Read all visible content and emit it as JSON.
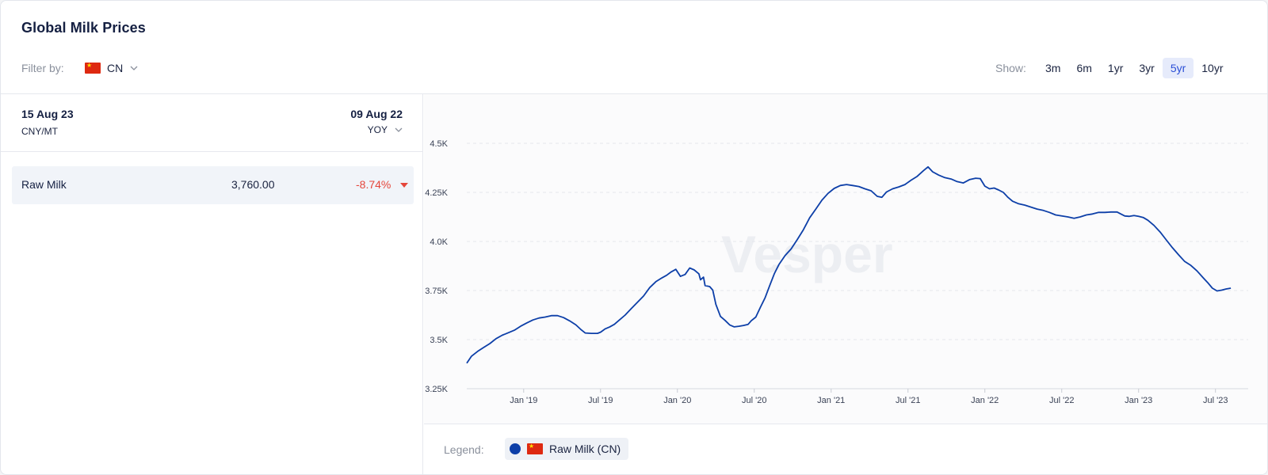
{
  "header": {
    "title": "Global Milk Prices"
  },
  "filter": {
    "label": "Filter by:",
    "country_code": "CN"
  },
  "range_selector": {
    "label": "Show:",
    "options": [
      "3m",
      "6m",
      "1yr",
      "3yr",
      "5yr",
      "10yr"
    ],
    "selected": "5yr"
  },
  "summary": {
    "start_date": "15 Aug 23",
    "unit": "CNY/MT",
    "end_date": "09 Aug 22",
    "comparison": "YOY"
  },
  "rows": [
    {
      "name": "Raw Milk",
      "price": "3,760.00",
      "change": "-8.74%",
      "direction": "down"
    }
  ],
  "legend": {
    "label": "Legend:",
    "entries": [
      {
        "name": "Raw Milk (CN)",
        "color": "#0d3fa8"
      }
    ]
  },
  "watermark": "Vesper",
  "colors": {
    "line": "#0d3fa8",
    "accent": "#2b4fd6",
    "negative": "#e5463b"
  },
  "chart_data": {
    "type": "line",
    "ylim": [
      3250,
      4500
    ],
    "yticks": [
      3250,
      3500,
      3750,
      4000,
      4250,
      4500
    ],
    "ytick_labels": [
      "3.25K",
      "3.5K",
      "3.75K",
      "4.0K",
      "4.25K",
      "4.5K"
    ],
    "xlim": [
      2018.63,
      2023.62
    ],
    "xticks": [
      {
        "label": "Jan '19",
        "x": 2019.0
      },
      {
        "label": "Jul '19",
        "x": 2019.5
      },
      {
        "label": "Jan '20",
        "x": 2020.0
      },
      {
        "label": "Jul '20",
        "x": 2020.5
      },
      {
        "label": "Jan '21",
        "x": 2021.0
      },
      {
        "label": "Jul '21",
        "x": 2021.5
      },
      {
        "label": "Jan '22",
        "x": 2022.0
      },
      {
        "label": "Jul '22",
        "x": 2022.5
      },
      {
        "label": "Jan '23",
        "x": 2023.0
      },
      {
        "label": "Jul '23",
        "x": 2023.5
      }
    ],
    "grid": true,
    "series": [
      {
        "name": "Raw Milk (CN)",
        "color": "#0d3fa8",
        "points": [
          [
            2018.63,
            3380
          ],
          [
            2018.66,
            3415
          ],
          [
            2018.7,
            3440
          ],
          [
            2018.74,
            3460
          ],
          [
            2018.78,
            3480
          ],
          [
            2018.82,
            3505
          ],
          [
            2018.86,
            3522
          ],
          [
            2018.9,
            3535
          ],
          [
            2018.94,
            3548
          ],
          [
            2018.98,
            3568
          ],
          [
            2019.02,
            3585
          ],
          [
            2019.06,
            3600
          ],
          [
            2019.1,
            3610
          ],
          [
            2019.14,
            3615
          ],
          [
            2019.18,
            3622
          ],
          [
            2019.22,
            3622
          ],
          [
            2019.26,
            3612
          ],
          [
            2019.3,
            3595
          ],
          [
            2019.34,
            3575
          ],
          [
            2019.37,
            3553
          ],
          [
            2019.4,
            3534
          ],
          [
            2019.44,
            3532
          ],
          [
            2019.48,
            3532
          ],
          [
            2019.5,
            3538
          ],
          [
            2019.53,
            3555
          ],
          [
            2019.56,
            3565
          ],
          [
            2019.59,
            3578
          ],
          [
            2019.62,
            3598
          ],
          [
            2019.66,
            3625
          ],
          [
            2019.7,
            3658
          ],
          [
            2019.74,
            3690
          ],
          [
            2019.78,
            3722
          ],
          [
            2019.82,
            3765
          ],
          [
            2019.86,
            3795
          ],
          [
            2019.9,
            3815
          ],
          [
            2019.93,
            3828
          ],
          [
            2019.96,
            3845
          ],
          [
            2019.99,
            3858
          ],
          [
            2020.02,
            3822
          ],
          [
            2020.05,
            3832
          ],
          [
            2020.08,
            3865
          ],
          [
            2020.11,
            3855
          ],
          [
            2020.14,
            3835
          ],
          [
            2020.15,
            3805
          ],
          [
            2020.17,
            3818
          ],
          [
            2020.18,
            3775
          ],
          [
            2020.21,
            3770
          ],
          [
            2020.23,
            3752
          ],
          [
            2020.25,
            3680
          ],
          [
            2020.28,
            3618
          ],
          [
            2020.31,
            3598
          ],
          [
            2020.34,
            3575
          ],
          [
            2020.37,
            3565
          ],
          [
            2020.4,
            3568
          ],
          [
            2020.43,
            3572
          ],
          [
            2020.46,
            3578
          ],
          [
            2020.48,
            3596
          ],
          [
            2020.51,
            3615
          ],
          [
            2020.54,
            3665
          ],
          [
            2020.57,
            3712
          ],
          [
            2020.6,
            3775
          ],
          [
            2020.63,
            3835
          ],
          [
            2020.66,
            3882
          ],
          [
            2020.7,
            3928
          ],
          [
            2020.74,
            3962
          ],
          [
            2020.78,
            4010
          ],
          [
            2020.82,
            4060
          ],
          [
            2020.86,
            4120
          ],
          [
            2020.9,
            4165
          ],
          [
            2020.94,
            4210
          ],
          [
            2020.98,
            4245
          ],
          [
            2021.02,
            4270
          ],
          [
            2021.06,
            4285
          ],
          [
            2021.1,
            4290
          ],
          [
            2021.14,
            4285
          ],
          [
            2021.18,
            4280
          ],
          [
            2021.22,
            4268
          ],
          [
            2021.26,
            4258
          ],
          [
            2021.3,
            4230
          ],
          [
            2021.33,
            4225
          ],
          [
            2021.36,
            4252
          ],
          [
            2021.4,
            4268
          ],
          [
            2021.44,
            4278
          ],
          [
            2021.48,
            4290
          ],
          [
            2021.52,
            4312
          ],
          [
            2021.56,
            4332
          ],
          [
            2021.6,
            4360
          ],
          [
            2021.63,
            4380
          ],
          [
            2021.66,
            4355
          ],
          [
            2021.7,
            4338
          ],
          [
            2021.74,
            4325
          ],
          [
            2021.78,
            4318
          ],
          [
            2021.82,
            4305
          ],
          [
            2021.86,
            4298
          ],
          [
            2021.9,
            4315
          ],
          [
            2021.94,
            4322
          ],
          [
            2021.97,
            4320
          ],
          [
            2022.0,
            4282
          ],
          [
            2022.03,
            4268
          ],
          [
            2022.06,
            4272
          ],
          [
            2022.09,
            4262
          ],
          [
            2022.12,
            4250
          ],
          [
            2022.15,
            4225
          ],
          [
            2022.18,
            4205
          ],
          [
            2022.22,
            4192
          ],
          [
            2022.26,
            4185
          ],
          [
            2022.3,
            4175
          ],
          [
            2022.34,
            4165
          ],
          [
            2022.38,
            4158
          ],
          [
            2022.42,
            4148
          ],
          [
            2022.46,
            4135
          ],
          [
            2022.5,
            4130
          ],
          [
            2022.54,
            4125
          ],
          [
            2022.58,
            4118
          ],
          [
            2022.62,
            4125
          ],
          [
            2022.66,
            4135
          ],
          [
            2022.7,
            4140
          ],
          [
            2022.74,
            4148
          ],
          [
            2022.78,
            4148
          ],
          [
            2022.82,
            4150
          ],
          [
            2022.86,
            4150
          ],
          [
            2022.88,
            4142
          ],
          [
            2022.91,
            4130
          ],
          [
            2022.94,
            4128
          ],
          [
            2022.97,
            4132
          ],
          [
            2023.0,
            4128
          ],
          [
            2023.03,
            4122
          ],
          [
            2023.06,
            4108
          ],
          [
            2023.1,
            4082
          ],
          [
            2023.14,
            4048
          ],
          [
            2023.18,
            4008
          ],
          [
            2023.22,
            3968
          ],
          [
            2023.26,
            3932
          ],
          [
            2023.3,
            3898
          ],
          [
            2023.34,
            3878
          ],
          [
            2023.38,
            3850
          ],
          [
            2023.42,
            3815
          ],
          [
            2023.45,
            3790
          ],
          [
            2023.48,
            3762
          ],
          [
            2023.51,
            3748
          ],
          [
            2023.54,
            3752
          ],
          [
            2023.57,
            3758
          ],
          [
            2023.6,
            3762
          ]
        ]
      }
    ]
  }
}
